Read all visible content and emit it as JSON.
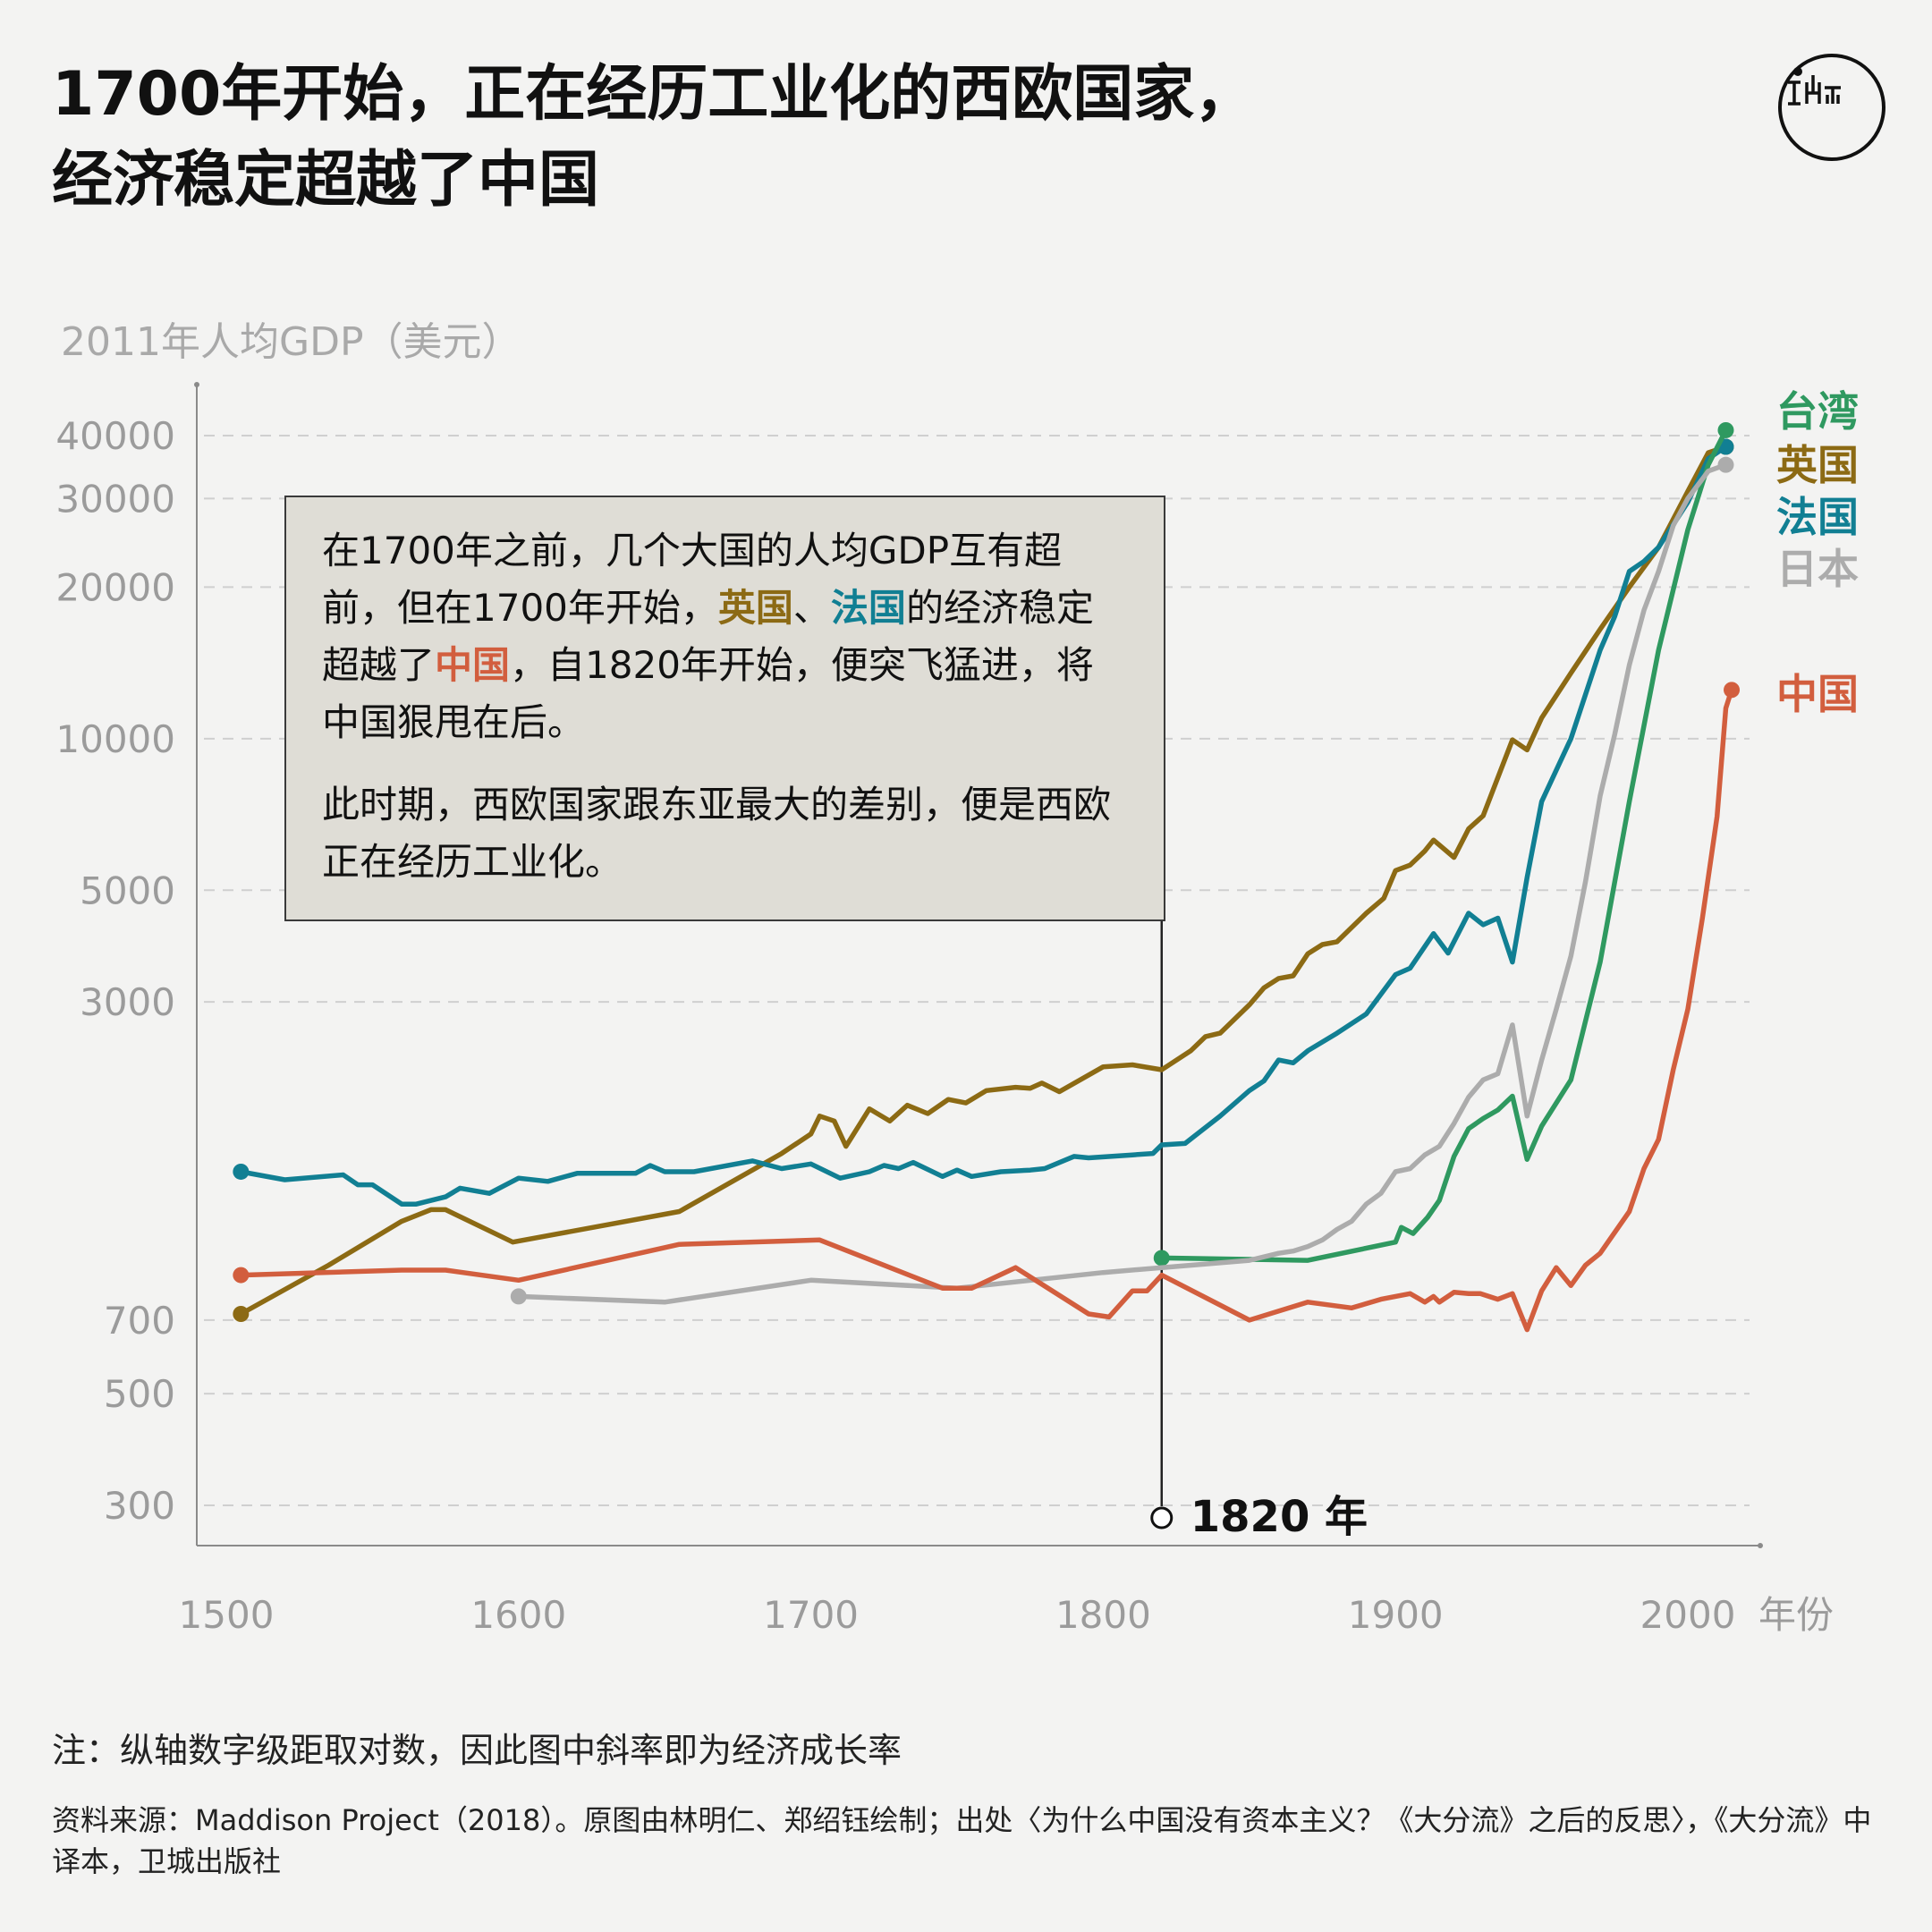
{
  "title": {
    "line1": "1700年开始，正在经历工业化的西欧国家，",
    "line2": "经济稳定超越了中国"
  },
  "logo_icon": "initium-logo-icon",
  "callout": {
    "p1_a": "在1700年之前，几个大国的人均GDP互有超前，但在1700年开始，",
    "p1_uk": "英国",
    "p1_sep": "、",
    "p1_fr": "法国",
    "p1_b": "的经济稳定超越了",
    "p1_cn": "中国",
    "p1_c": "，自1820年开始，便突飞猛进，将中国狠甩在后。",
    "p2": "此时期，西欧国家跟东亚最大的差别，便是西欧正在经历工业化。"
  },
  "note": "注：纵轴数字级距取对数，因此图中斜率即为经济成长率",
  "source": "资料来源：Maddison Project（2018）。原图由林明仁、郑绍钰绘制；出处〈为什么中国没有资本主义？《大分流》之后的反思〉，《大分流》中译本，卫城出版社",
  "chart_data": {
    "type": "line",
    "ylabel": "2011年人均GDP（美元）",
    "xlabel": "年份",
    "yscale": "log",
    "xlim": [
      1490,
      2025
    ],
    "yticks": [
      300,
      500,
      700,
      3000,
      5000,
      10000,
      20000,
      30000,
      40000
    ],
    "xticks": [
      1500,
      1600,
      1700,
      1800,
      1900,
      2000
    ],
    "grid": true,
    "marker": {
      "x": 1820,
      "label": "1820 年"
    },
    "series": [
      {
        "name": "英国",
        "color": "#8c6a14",
        "points": [
          [
            1505,
            720
          ],
          [
            1535,
            900
          ],
          [
            1560,
            1100
          ],
          [
            1570,
            1160
          ],
          [
            1575,
            1160
          ],
          [
            1598,
            1000
          ],
          [
            1655,
            1150
          ],
          [
            1690,
            1500
          ],
          [
            1700,
            1640
          ],
          [
            1703,
            1780
          ],
          [
            1708,
            1740
          ],
          [
            1712,
            1550
          ],
          [
            1720,
            1840
          ],
          [
            1727,
            1740
          ],
          [
            1733,
            1870
          ],
          [
            1740,
            1800
          ],
          [
            1747,
            1920
          ],
          [
            1753,
            1890
          ],
          [
            1760,
            2000
          ],
          [
            1770,
            2030
          ],
          [
            1775,
            2020
          ],
          [
            1779,
            2070
          ],
          [
            1785,
            1990
          ],
          [
            1800,
            2230
          ],
          [
            1810,
            2250
          ],
          [
            1820,
            2200
          ],
          [
            1830,
            2400
          ],
          [
            1835,
            2560
          ],
          [
            1840,
            2600
          ],
          [
            1850,
            2960
          ],
          [
            1855,
            3200
          ],
          [
            1860,
            3340
          ],
          [
            1865,
            3380
          ],
          [
            1870,
            3740
          ],
          [
            1875,
            3900
          ],
          [
            1880,
            3950
          ],
          [
            1890,
            4500
          ],
          [
            1896,
            4820
          ],
          [
            1900,
            5470
          ],
          [
            1905,
            5610
          ],
          [
            1910,
            5980
          ],
          [
            1913,
            6290
          ],
          [
            1920,
            5810
          ],
          [
            1925,
            6620
          ],
          [
            1930,
            7030
          ],
          [
            1940,
            9950
          ],
          [
            1945,
            9500
          ],
          [
            1950,
            11000
          ],
          [
            1960,
            13500
          ],
          [
            1970,
            16500
          ],
          [
            1980,
            20000
          ],
          [
            1990,
            24000
          ],
          [
            2000,
            31000
          ],
          [
            2007,
            37000
          ],
          [
            2013,
            38000
          ]
        ]
      },
      {
        "name": "法国",
        "color": "#117f93",
        "points": [
          [
            1505,
            1380
          ],
          [
            1520,
            1330
          ],
          [
            1540,
            1360
          ],
          [
            1545,
            1300
          ],
          [
            1550,
            1300
          ],
          [
            1560,
            1190
          ],
          [
            1565,
            1190
          ],
          [
            1575,
            1230
          ],
          [
            1580,
            1280
          ],
          [
            1590,
            1250
          ],
          [
            1600,
            1340
          ],
          [
            1610,
            1320
          ],
          [
            1620,
            1370
          ],
          [
            1640,
            1370
          ],
          [
            1645,
            1420
          ],
          [
            1650,
            1380
          ],
          [
            1660,
            1380
          ],
          [
            1680,
            1450
          ],
          [
            1690,
            1400
          ],
          [
            1700,
            1430
          ],
          [
            1710,
            1340
          ],
          [
            1720,
            1380
          ],
          [
            1725,
            1420
          ],
          [
            1730,
            1400
          ],
          [
            1735,
            1440
          ],
          [
            1745,
            1350
          ],
          [
            1750,
            1390
          ],
          [
            1755,
            1350
          ],
          [
            1765,
            1380
          ],
          [
            1775,
            1390
          ],
          [
            1780,
            1400
          ],
          [
            1790,
            1480
          ],
          [
            1795,
            1470
          ],
          [
            1810,
            1490
          ],
          [
            1817,
            1500
          ],
          [
            1820,
            1560
          ],
          [
            1828,
            1570
          ],
          [
            1840,
            1780
          ],
          [
            1850,
            2000
          ],
          [
            1855,
            2090
          ],
          [
            1860,
            2300
          ],
          [
            1865,
            2270
          ],
          [
            1870,
            2400
          ],
          [
            1880,
            2600
          ],
          [
            1890,
            2840
          ],
          [
            1900,
            3400
          ],
          [
            1905,
            3500
          ],
          [
            1913,
            4100
          ],
          [
            1918,
            3750
          ],
          [
            1925,
            4500
          ],
          [
            1930,
            4270
          ],
          [
            1935,
            4400
          ],
          [
            1940,
            3600
          ],
          [
            1945,
            5300
          ],
          [
            1950,
            7500
          ],
          [
            1960,
            10000
          ],
          [
            1970,
            15000
          ],
          [
            1975,
            17500
          ],
          [
            1980,
            21500
          ],
          [
            1985,
            22500
          ],
          [
            1990,
            24000
          ],
          [
            2000,
            29500
          ],
          [
            2007,
            36000
          ],
          [
            2013,
            38000
          ]
        ]
      },
      {
        "name": "台湾",
        "color": "#2f9960",
        "points": [
          [
            1820,
            930
          ],
          [
            1870,
            920
          ],
          [
            1900,
            1000
          ],
          [
            1902,
            1070
          ],
          [
            1906,
            1040
          ],
          [
            1911,
            1120
          ],
          [
            1915,
            1210
          ],
          [
            1920,
            1480
          ],
          [
            1925,
            1680
          ],
          [
            1930,
            1760
          ],
          [
            1935,
            1830
          ],
          [
            1940,
            1950
          ],
          [
            1945,
            1460
          ],
          [
            1950,
            1700
          ],
          [
            1960,
            2100
          ],
          [
            1970,
            3600
          ],
          [
            1980,
            7500
          ],
          [
            1990,
            15000
          ],
          [
            2000,
            26000
          ],
          [
            2007,
            35000
          ],
          [
            2013,
            41000
          ]
        ]
      },
      {
        "name": "日本",
        "color": "#acacac",
        "points": [
          [
            1600,
            780
          ],
          [
            1650,
            760
          ],
          [
            1700,
            840
          ],
          [
            1750,
            810
          ],
          [
            1800,
            870
          ],
          [
            1820,
            890
          ],
          [
            1850,
            920
          ],
          [
            1860,
            950
          ],
          [
            1865,
            960
          ],
          [
            1870,
            980
          ],
          [
            1875,
            1010
          ],
          [
            1880,
            1060
          ],
          [
            1885,
            1100
          ],
          [
            1890,
            1190
          ],
          [
            1895,
            1250
          ],
          [
            1900,
            1380
          ],
          [
            1905,
            1400
          ],
          [
            1910,
            1490
          ],
          [
            1915,
            1550
          ],
          [
            1920,
            1720
          ],
          [
            1925,
            1940
          ],
          [
            1930,
            2100
          ],
          [
            1935,
            2160
          ],
          [
            1940,
            2700
          ],
          [
            1945,
            1780
          ],
          [
            1950,
            2300
          ],
          [
            1955,
            2900
          ],
          [
            1960,
            3700
          ],
          [
            1965,
            5200
          ],
          [
            1970,
            7700
          ],
          [
            1975,
            10200
          ],
          [
            1980,
            14000
          ],
          [
            1985,
            18000
          ],
          [
            1990,
            21500
          ],
          [
            1995,
            26500
          ],
          [
            2000,
            30000
          ],
          [
            2007,
            34000
          ],
          [
            2013,
            35000
          ]
        ]
      },
      {
        "name": "中国",
        "color": "#d25e3e",
        "points": [
          [
            1505,
            860
          ],
          [
            1560,
            880
          ],
          [
            1575,
            880
          ],
          [
            1600,
            840
          ],
          [
            1655,
            990
          ],
          [
            1703,
            1010
          ],
          [
            1745,
            810
          ],
          [
            1755,
            810
          ],
          [
            1770,
            890
          ],
          [
            1795,
            720
          ],
          [
            1802,
            710
          ],
          [
            1810,
            800
          ],
          [
            1815,
            800
          ],
          [
            1820,
            860
          ],
          [
            1850,
            700
          ],
          [
            1870,
            760
          ],
          [
            1885,
            740
          ],
          [
            1895,
            770
          ],
          [
            1905,
            790
          ],
          [
            1910,
            760
          ],
          [
            1913,
            780
          ],
          [
            1915,
            760
          ],
          [
            1920,
            795
          ],
          [
            1925,
            790
          ],
          [
            1929,
            790
          ],
          [
            1935,
            770
          ],
          [
            1940,
            790
          ],
          [
            1945,
            670
          ],
          [
            1950,
            800
          ],
          [
            1955,
            890
          ],
          [
            1960,
            820
          ],
          [
            1965,
            900
          ],
          [
            1970,
            950
          ],
          [
            1980,
            1150
          ],
          [
            1985,
            1400
          ],
          [
            1990,
            1600
          ],
          [
            1995,
            2200
          ],
          [
            2000,
            2900
          ],
          [
            2005,
            4400
          ],
          [
            2010,
            7000
          ],
          [
            2013,
            11500
          ],
          [
            2015,
            12500
          ]
        ]
      }
    ]
  }
}
